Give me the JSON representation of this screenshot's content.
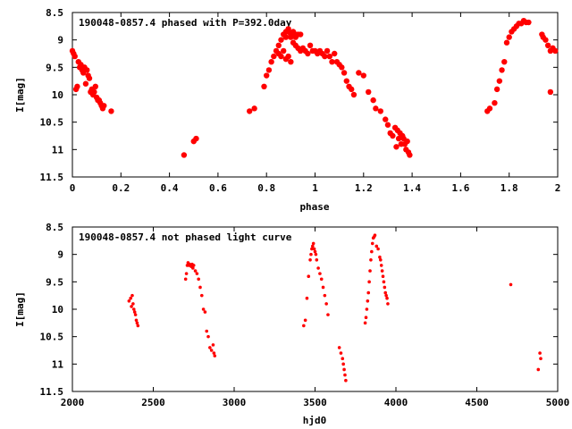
{
  "colors": {
    "marker": "#ff0000",
    "axis": "#000000",
    "background": "#ffffff"
  },
  "chart_data": [
    {
      "type": "scatter",
      "title": "190048-0857.4 phased with P=392.0day",
      "xlabel": "phase",
      "ylabel": "I[mag]",
      "xlim": [
        0,
        2
      ],
      "ylim": [
        8.5,
        11.5
      ],
      "y_inverted": true,
      "xticks": [
        0,
        0.2,
        0.4,
        0.6,
        0.8,
        1,
        1.2,
        1.4,
        1.6,
        1.8,
        2
      ],
      "xtick_labels": [
        "0",
        "0.2",
        "0.4",
        "0.6",
        "0.8",
        "1",
        "1.2",
        "1.4",
        "1.6",
        "1.8",
        "2"
      ],
      "yticks": [
        8.5,
        9,
        9.5,
        10,
        10.5,
        11,
        11.5
      ],
      "ytick_labels": [
        "8.5",
        "9",
        "9.5",
        "10",
        "10.5",
        "11",
        "11.5"
      ],
      "grid": false,
      "marker_size": 3.2,
      "x": [
        0.0,
        0.005,
        0.01,
        0.015,
        0.02,
        0.025,
        0.03,
        0.035,
        0.04,
        0.045,
        0.05,
        0.055,
        0.06,
        0.065,
        0.07,
        0.075,
        0.08,
        0.085,
        0.09,
        0.095,
        0.1,
        0.105,
        0.11,
        0.115,
        0.12,
        0.125,
        0.13,
        0.16,
        0.46,
        0.5,
        0.51,
        0.73,
        0.75,
        0.79,
        0.8,
        0.81,
        0.82,
        0.83,
        0.84,
        0.85,
        0.86,
        0.87,
        0.88,
        0.89,
        0.9,
        0.91,
        0.92,
        0.93,
        0.94,
        0.95,
        0.96,
        0.97,
        0.98,
        0.99,
        1.0,
        1.01,
        1.02,
        1.03,
        1.04,
        1.05,
        1.06,
        1.07,
        1.08,
        1.09,
        1.1,
        1.11,
        1.12,
        1.13,
        1.14,
        1.15,
        1.16,
        1.18,
        1.2,
        1.22,
        1.24,
        1.25,
        1.27,
        1.29,
        1.3,
        1.31,
        1.32,
        1.33,
        1.335,
        1.34,
        1.345,
        1.35,
        1.355,
        1.36,
        1.365,
        1.37,
        1.375,
        1.38,
        1.385,
        1.39,
        0.85,
        0.86,
        0.87,
        0.88,
        0.89,
        0.9,
        0.91,
        0.92,
        0.93,
        0.88,
        0.89,
        0.9,
        0.92,
        0.94,
        1.71,
        1.72,
        1.74,
        1.75,
        1.76,
        1.77,
        1.78,
        1.79,
        1.8,
        1.81,
        1.82,
        1.83,
        1.84,
        1.85,
        1.86,
        1.87,
        1.88,
        1.935,
        1.94,
        1.95,
        1.96,
        1.97,
        1.98,
        1.99,
        1.97
      ],
      "y": [
        9.2,
        9.25,
        9.3,
        9.9,
        9.85,
        9.4,
        9.5,
        9.45,
        9.55,
        9.6,
        9.5,
        9.8,
        9.55,
        9.65,
        9.7,
        9.95,
        9.9,
        10.0,
        9.95,
        9.85,
        10.05,
        10.1,
        10.1,
        10.15,
        10.2,
        10.25,
        10.2,
        10.3,
        11.1,
        10.85,
        10.8,
        10.3,
        10.25,
        9.85,
        9.65,
        9.55,
        9.4,
        9.3,
        9.2,
        9.1,
        9.0,
        8.9,
        8.85,
        8.8,
        8.95,
        9.05,
        9.1,
        9.15,
        9.2,
        9.15,
        9.2,
        9.25,
        9.1,
        9.2,
        9.2,
        9.25,
        9.2,
        9.25,
        9.3,
        9.2,
        9.3,
        9.4,
        9.25,
        9.4,
        9.45,
        9.5,
        9.6,
        9.75,
        9.85,
        9.9,
        10.0,
        9.6,
        9.65,
        9.95,
        10.1,
        10.25,
        10.3,
        10.45,
        10.55,
        10.7,
        10.75,
        10.6,
        10.95,
        10.65,
        10.8,
        10.7,
        10.9,
        10.75,
        10.8,
        10.9,
        11.0,
        10.85,
        11.05,
        11.1,
        9.25,
        9.3,
        9.2,
        9.35,
        9.3,
        9.4,
        8.85,
        8.9,
        8.9,
        8.95,
        8.85,
        8.9,
        8.95,
        8.9,
        10.3,
        10.25,
        10.15,
        9.9,
        9.75,
        9.55,
        9.4,
        9.05,
        8.95,
        8.85,
        8.8,
        8.75,
        8.7,
        8.7,
        8.65,
        8.68,
        8.68,
        8.9,
        8.95,
        9.0,
        9.1,
        9.2,
        9.15,
        9.2,
        9.95
      ]
    },
    {
      "type": "scatter",
      "title": "190048-0857.4 not phased light curve",
      "xlabel": "hjd0",
      "ylabel": "I[mag]",
      "xlim": [
        2000,
        5000
      ],
      "ylim": [
        8.5,
        11.5
      ],
      "y_inverted": true,
      "xticks": [
        2000,
        2500,
        3000,
        3500,
        4000,
        4500,
        5000
      ],
      "xtick_labels": [
        "2000",
        "2500",
        "3000",
        "3500",
        "4000",
        "4500",
        "5000"
      ],
      "yticks": [
        8.5,
        9,
        9.5,
        10,
        10.5,
        11,
        11.5
      ],
      "ytick_labels": [
        "8.5",
        "9",
        "9.5",
        "10",
        "10.5",
        "11",
        "11.5"
      ],
      "grid": false,
      "marker_size": 1.8,
      "x": [
        2350,
        2360,
        2365,
        2370,
        2375,
        2380,
        2385,
        2390,
        2395,
        2400,
        2405,
        2700,
        2705,
        2710,
        2715,
        2720,
        2725,
        2730,
        2735,
        2740,
        2745,
        2750,
        2760,
        2770,
        2780,
        2790,
        2800,
        2810,
        2820,
        2830,
        2840,
        2850,
        2860,
        2870,
        2875,
        2880,
        3430,
        3440,
        3450,
        3460,
        3470,
        3475,
        3480,
        3485,
        3490,
        3495,
        3500,
        3505,
        3510,
        3520,
        3530,
        3540,
        3550,
        3560,
        3570,
        3580,
        3650,
        3660,
        3670,
        3675,
        3680,
        3685,
        3690,
        3810,
        3815,
        3820,
        3825,
        3830,
        3835,
        3840,
        3845,
        3850,
        3855,
        3860,
        3865,
        3870,
        3880,
        3890,
        3900,
        3905,
        3910,
        3915,
        3920,
        3925,
        3930,
        3935,
        3940,
        3945,
        3950,
        4710,
        4880,
        4890,
        4895
      ],
      "y": [
        9.85,
        9.8,
        9.95,
        9.75,
        9.9,
        10.0,
        10.05,
        10.1,
        10.2,
        10.25,
        10.3,
        9.45,
        9.35,
        9.2,
        9.15,
        9.2,
        9.18,
        9.2,
        9.22,
        9.18,
        9.25,
        9.2,
        9.3,
        9.35,
        9.45,
        9.6,
        9.75,
        10.0,
        10.05,
        10.4,
        10.5,
        10.7,
        10.75,
        10.65,
        10.8,
        10.85,
        10.3,
        10.2,
        9.8,
        9.4,
        9.1,
        9.0,
        8.9,
        8.85,
        8.8,
        8.9,
        8.95,
        9.0,
        9.1,
        9.25,
        9.35,
        9.45,
        9.6,
        9.75,
        9.9,
        10.1,
        10.7,
        10.8,
        10.9,
        11.0,
        11.1,
        11.2,
        11.3,
        10.25,
        10.15,
        10.0,
        9.85,
        9.7,
        9.5,
        9.3,
        9.1,
        8.95,
        8.8,
        8.7,
        8.68,
        8.65,
        8.85,
        8.9,
        9.05,
        9.1,
        9.2,
        9.3,
        9.4,
        9.5,
        9.6,
        9.7,
        9.75,
        9.8,
        9.9,
        9.55,
        11.1,
        10.8,
        10.9
      ]
    }
  ]
}
